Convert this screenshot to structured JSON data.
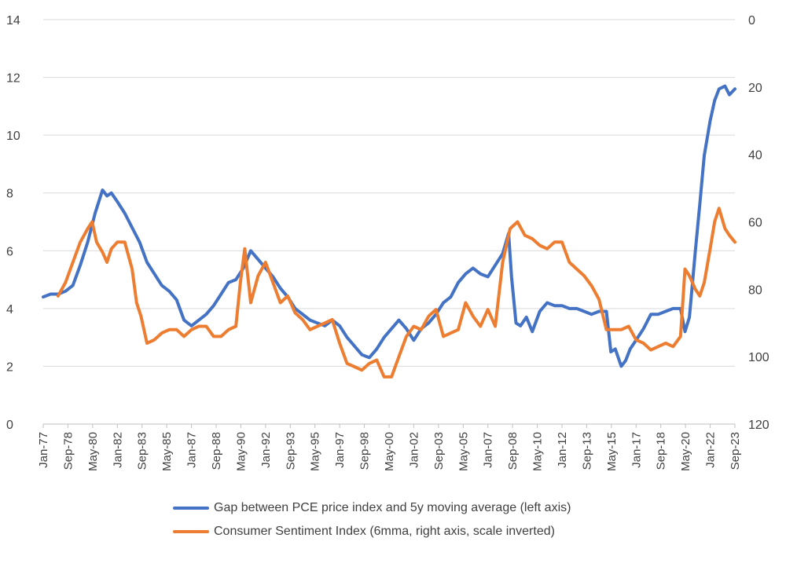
{
  "chart_data": {
    "type": "line",
    "title": "",
    "x_ticks": [
      "Jan-77",
      "Sep-78",
      "May-80",
      "Jan-82",
      "Sep-83",
      "May-85",
      "Jan-87",
      "Sep-88",
      "May-90",
      "Jan-92",
      "Sep-93",
      "May-95",
      "Jan-97",
      "Sep-98",
      "May-00",
      "Jan-02",
      "Sep-03",
      "May-05",
      "Jan-07",
      "Sep-08",
      "May-10",
      "Jan-12",
      "Sep-13",
      "May-15",
      "Jan-17",
      "Sep-18",
      "May-20",
      "Jan-22",
      "Sep-23"
    ],
    "x_range": [
      1977.0,
      2023.67
    ],
    "left_axis": {
      "label": "",
      "ticks": [
        0,
        2,
        4,
        6,
        8,
        10,
        12,
        14
      ],
      "ylim": [
        0,
        14
      ]
    },
    "right_axis": {
      "label": "",
      "ticks": [
        0,
        20,
        40,
        60,
        80,
        100,
        120
      ],
      "ylim": [
        0,
        120
      ],
      "inverted": true
    },
    "grid": true,
    "legend_position": "bottom",
    "series": [
      {
        "name": "Gap between PCE price index and 5y moving average (left axis)",
        "axis": "left",
        "color": "#4472C4",
        "x": [
          1977.0,
          1977.5,
          1978.0,
          1978.5,
          1979.0,
          1979.5,
          1980.0,
          1980.5,
          1981.0,
          1981.3,
          1981.6,
          1982.0,
          1982.5,
          1983.0,
          1983.5,
          1984.0,
          1984.5,
          1985.0,
          1985.5,
          1986.0,
          1986.5,
          1987.0,
          1987.5,
          1988.0,
          1988.5,
          1989.0,
          1989.5,
          1990.0,
          1990.5,
          1991.0,
          1991.5,
          1992.0,
          1992.5,
          1993.0,
          1993.5,
          1994.0,
          1994.5,
          1995.0,
          1995.5,
          1996.0,
          1996.5,
          1997.0,
          1997.5,
          1998.0,
          1998.5,
          1999.0,
          1999.5,
          2000.0,
          2000.5,
          2001.0,
          2001.5,
          2002.0,
          2002.5,
          2003.0,
          2003.5,
          2004.0,
          2004.5,
          2005.0,
          2005.5,
          2006.0,
          2006.5,
          2007.0,
          2007.5,
          2008.0,
          2008.4,
          2008.6,
          2008.9,
          2009.2,
          2009.6,
          2010.0,
          2010.5,
          2011.0,
          2011.5,
          2012.0,
          2012.5,
          2013.0,
          2013.5,
          2014.0,
          2014.5,
          2015.0,
          2015.3,
          2015.6,
          2016.0,
          2016.3,
          2016.6,
          2017.0,
          2017.5,
          2018.0,
          2018.5,
          2019.0,
          2019.5,
          2020.0,
          2020.3,
          2020.6,
          2021.0,
          2021.3,
          2021.6,
          2022.0,
          2022.3,
          2022.6,
          2023.0,
          2023.3,
          2023.67
        ],
        "values": [
          4.4,
          4.5,
          4.5,
          4.6,
          4.8,
          5.5,
          6.3,
          7.3,
          8.1,
          7.9,
          8.0,
          7.7,
          7.3,
          6.8,
          6.3,
          5.6,
          5.2,
          4.8,
          4.6,
          4.3,
          3.6,
          3.4,
          3.6,
          3.8,
          4.1,
          4.5,
          4.9,
          5.0,
          5.4,
          6.0,
          5.7,
          5.4,
          5.1,
          4.7,
          4.4,
          4.0,
          3.8,
          3.6,
          3.5,
          3.4,
          3.6,
          3.4,
          3.0,
          2.7,
          2.4,
          2.3,
          2.6,
          3.0,
          3.3,
          3.6,
          3.3,
          2.9,
          3.3,
          3.5,
          3.8,
          4.2,
          4.4,
          4.9,
          5.2,
          5.4,
          5.2,
          5.1,
          5.5,
          5.9,
          6.6,
          5.1,
          3.5,
          3.4,
          3.7,
          3.2,
          3.9,
          4.2,
          4.1,
          4.1,
          4.0,
          4.0,
          3.9,
          3.8,
          3.9,
          3.9,
          2.5,
          2.6,
          2.0,
          2.2,
          2.6,
          2.9,
          3.3,
          3.8,
          3.8,
          3.9,
          4.0,
          4.0,
          3.2,
          3.7,
          6.0,
          7.6,
          9.3,
          10.5,
          11.2,
          11.6,
          11.7,
          11.4,
          11.6
        ]
      },
      {
        "name": "Consumer Sentiment Index (6mma, right axis, scale inverted)",
        "axis": "right",
        "color": "#ED7D31",
        "x": [
          1978.0,
          1978.5,
          1979.0,
          1979.5,
          1980.0,
          1980.3,
          1980.6,
          1981.0,
          1981.3,
          1981.6,
          1982.0,
          1982.5,
          1983.0,
          1983.3,
          1983.6,
          1984.0,
          1984.5,
          1985.0,
          1985.5,
          1986.0,
          1986.5,
          1987.0,
          1987.5,
          1988.0,
          1988.5,
          1989.0,
          1989.5,
          1990.0,
          1990.3,
          1990.6,
          1991.0,
          1991.5,
          1992.0,
          1992.5,
          1993.0,
          1993.5,
          1994.0,
          1994.5,
          1995.0,
          1995.5,
          1996.0,
          1996.5,
          1997.0,
          1997.5,
          1998.0,
          1998.5,
          1999.0,
          1999.5,
          2000.0,
          2000.5,
          2001.0,
          2001.5,
          2002.0,
          2002.5,
          2003.0,
          2003.5,
          2004.0,
          2004.5,
          2005.0,
          2005.5,
          2006.0,
          2006.5,
          2007.0,
          2007.5,
          2008.0,
          2008.5,
          2009.0,
          2009.5,
          2010.0,
          2010.5,
          2011.0,
          2011.5,
          2012.0,
          2012.5,
          2013.0,
          2013.5,
          2014.0,
          2014.5,
          2015.0,
          2015.5,
          2016.0,
          2016.5,
          2017.0,
          2017.5,
          2018.0,
          2018.5,
          2019.0,
          2019.5,
          2020.0,
          2020.3,
          2020.6,
          2021.0,
          2021.3,
          2021.6,
          2022.0,
          2022.3,
          2022.6,
          2023.0,
          2023.3,
          2023.67
        ],
        "values": [
          82,
          78,
          72,
          66,
          62,
          60,
          66,
          69,
          72,
          68,
          66,
          66,
          74,
          84,
          88,
          96,
          95,
          93,
          92,
          92,
          94,
          92,
          91,
          91,
          94,
          94,
          92,
          91,
          78,
          68,
          84,
          76,
          72,
          78,
          84,
          82,
          87,
          89,
          92,
          91,
          90,
          89,
          96,
          102,
          103,
          104,
          102,
          101,
          106,
          106,
          100,
          94,
          91,
          92,
          88,
          86,
          94,
          93,
          92,
          84,
          88,
          91,
          86,
          91,
          72,
          62,
          60,
          64,
          65,
          67,
          68,
          66,
          66,
          72,
          74,
          76,
          79,
          83,
          92,
          92,
          92,
          91,
          95,
          96,
          98,
          97,
          96,
          97,
          94,
          74,
          76,
          80,
          82,
          78,
          68,
          60,
          56,
          62,
          64,
          66
        ]
      }
    ]
  }
}
